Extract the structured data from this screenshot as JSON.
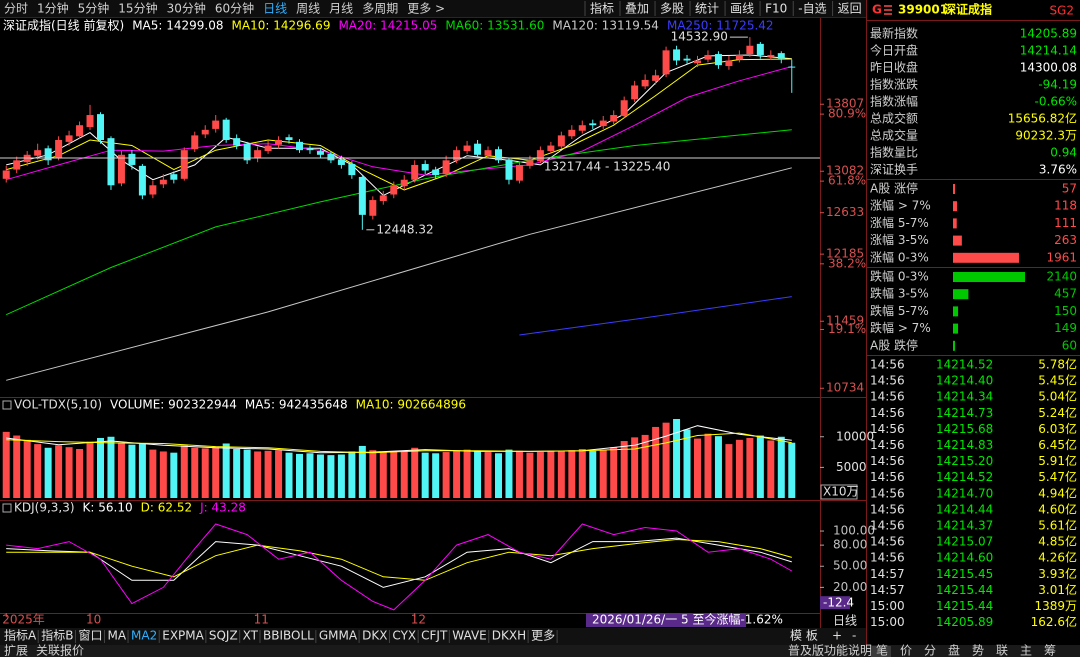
{
  "toolbar": {
    "periods": [
      "分时",
      "1分钟",
      "5分钟",
      "15分钟",
      "30分钟",
      "60分钟",
      "日线",
      "周线",
      "月线",
      "多周期",
      "更多 >"
    ],
    "active_period": 6,
    "tools": [
      "指标",
      "叠加",
      "多股",
      "统计",
      "画线",
      "F10",
      "-自选",
      "返回"
    ]
  },
  "chart_data": [
    {
      "type": "candlestick",
      "title": "深证成指(日线 前复权)",
      "open": [
        13000,
        13100,
        13180,
        13250,
        13330,
        13230,
        13400,
        13460,
        13560,
        13700,
        13440,
        12950,
        13270,
        13140,
        12830,
        12940,
        13050,
        13000,
        13320,
        13480,
        13540,
        13640,
        13440,
        13380,
        13220,
        13300,
        13370,
        13450,
        13400,
        13330,
        13300,
        13270,
        13210,
        13160,
        13020,
        12600,
        12760,
        12830,
        12920,
        12990,
        13160,
        13100,
        13050,
        13200,
        13300,
        13380,
        13250,
        13320,
        13210,
        12980,
        13140,
        13190,
        13300,
        13350,
        13460,
        13520,
        13600,
        13570,
        13620,
        13680,
        13860,
        14000,
        14060,
        14130,
        14400,
        14300,
        14250,
        14290,
        14350,
        14220,
        14290,
        14350,
        14460,
        14320,
        14360,
        14214.14
      ],
      "high": [
        13140,
        13240,
        13300,
        13380,
        13360,
        13460,
        13520,
        13620,
        13800,
        13720,
        13460,
        13300,
        13310,
        13160,
        12980,
        13050,
        13080,
        13340,
        13510,
        13580,
        13690,
        13660,
        13480,
        13400,
        13350,
        13410,
        13460,
        13480,
        13430,
        13360,
        13330,
        13300,
        13250,
        13190,
        13040,
        12810,
        12870,
        12970,
        13040,
        13200,
        13200,
        13130,
        13250,
        13350,
        13410,
        13420,
        13350,
        13350,
        13230,
        13190,
        13250,
        13350,
        13400,
        13510,
        13580,
        13630,
        13640,
        13680,
        13740,
        13890,
        14060,
        14130,
        14180,
        14430,
        14440,
        14340,
        14330,
        14390,
        14380,
        14330,
        14390,
        14532.9,
        14480,
        14390,
        14380,
        14290
      ],
      "low": [
        12960,
        13060,
        13140,
        13210,
        13150,
        13200,
        13360,
        13430,
        13530,
        13380,
        12880,
        12920,
        13100,
        12780,
        12790,
        12900,
        12950,
        12980,
        13290,
        13440,
        13500,
        13390,
        13320,
        13160,
        13180,
        13270,
        13330,
        13380,
        13280,
        13270,
        13220,
        13170,
        13110,
        13000,
        12448.32,
        12560,
        12720,
        12790,
        12880,
        12960,
        13050,
        13000,
        13020,
        13170,
        13270,
        13220,
        13220,
        13170,
        12940,
        12950,
        13110,
        13170,
        13270,
        13330,
        13430,
        13490,
        13540,
        13540,
        13590,
        13660,
        13830,
        13970,
        14020,
        14100,
        14230,
        14240,
        14210,
        14260,
        14190,
        14180,
        14260,
        14320,
        14300,
        14290,
        14250,
        13930
      ],
      "close": [
        13090,
        13200,
        13260,
        13310,
        13200,
        13420,
        13470,
        13580,
        13690,
        13420,
        12930,
        13260,
        13150,
        12820,
        12930,
        12990,
        12990,
        13310,
        13470,
        13530,
        13630,
        13420,
        13360,
        13200,
        13310,
        13360,
        13420,
        13420,
        13310,
        13310,
        13260,
        13200,
        13150,
        13040,
        12610,
        12770,
        12820,
        12930,
        12990,
        13150,
        13090,
        13040,
        13200,
        13310,
        13360,
        13260,
        13310,
        13200,
        12990,
        13150,
        13200,
        13310,
        13360,
        13470,
        13530,
        13580,
        13580,
        13630,
        13690,
        13850,
        14010,
        14070,
        14120,
        14390,
        14280,
        14280,
        14280,
        14340,
        14230,
        14280,
        14340,
        14440,
        14340,
        14340,
        14300,
        14205.89
      ],
      "up_color": "#ff4a4a",
      "down_color": "#52f5f5",
      "ylim": [
        10650,
        14740
      ],
      "yticks": [
        10734,
        11459,
        12185,
        12633,
        13082,
        13807
      ],
      "ytick_color": "#d85050",
      "fib_levels": [
        {
          "value": 11370,
          "label": "19.1%"
        },
        {
          "value": 12080,
          "label": "38.2%"
        },
        {
          "value": 12975,
          "label": "61.8%"
        },
        {
          "value": 13700,
          "label": "80.9%"
        }
      ],
      "xticks": [
        {
          "value": 0,
          "label": "2025年"
        },
        {
          "value": 8,
          "label": "10"
        },
        {
          "value": 24,
          "label": "11"
        },
        {
          "value": 39,
          "label": "12"
        }
      ],
      "series": [
        {
          "name": "MA5: 14299.08",
          "color": "#ffffff",
          "x": [
            0,
            4,
            8,
            11,
            14,
            18,
            21,
            25,
            30,
            33,
            36,
            40,
            44,
            48,
            51,
            55,
            59,
            63,
            67,
            71,
            75
          ],
          "values": [
            13150,
            13260,
            13500,
            13200,
            12990,
            13150,
            13450,
            13330,
            13330,
            13150,
            12820,
            13040,
            13250,
            13200,
            13150,
            13470,
            13700,
            14150,
            14330,
            14340,
            14299.08
          ]
        },
        {
          "name": "MA10: 14296.69",
          "color": "#ffff00",
          "x": [
            0,
            5,
            8,
            12,
            16,
            20,
            25,
            30,
            34,
            38,
            42,
            46,
            50,
            54,
            58,
            62,
            66,
            70,
            75
          ],
          "values": [
            13100,
            13250,
            13420,
            13360,
            13100,
            13310,
            13420,
            13360,
            13100,
            12880,
            13040,
            13250,
            13200,
            13360,
            13580,
            13900,
            14230,
            14290,
            14296.69
          ]
        },
        {
          "name": "MA20: 14215.05",
          "color": "#ff00ff",
          "x": [
            0,
            5,
            10,
            15,
            20,
            25,
            30,
            35,
            40,
            45,
            50,
            55,
            60,
            65,
            70,
            75
          ],
          "values": [
            12990,
            13150,
            13310,
            13300,
            13360,
            13380,
            13310,
            13130,
            13040,
            13100,
            13150,
            13300,
            13580,
            13880,
            14060,
            14215.05
          ]
        },
        {
          "name": "MA60: 13531.60",
          "color": "#00d800",
          "x": [
            0,
            10,
            20,
            30,
            40,
            50,
            60,
            75
          ],
          "values": [
            11530,
            12040,
            12480,
            12750,
            13000,
            13200,
            13360,
            13531.6
          ]
        },
        {
          "name": "MA120: 13119.54",
          "color": "#c8c8c8",
          "x": [
            0,
            25,
            50,
            75
          ],
          "values": [
            10820,
            11560,
            12400,
            13119.54
          ]
        },
        {
          "name": "MA250: 11725.42",
          "color": "#3c3cff",
          "x": [
            49,
            60,
            75
          ],
          "values": [
            11310,
            11480,
            11725.42
          ]
        }
      ],
      "annotations": [
        {
          "value": 14532.9,
          "label": "14532.90",
          "x": 71,
          "side": "left"
        },
        {
          "value": 12448.32,
          "label": "12448.32",
          "x": 34,
          "side": "right"
        },
        {
          "value": 13225.4,
          "label": "13217.44 - 13225.40",
          "x": 50,
          "side": "right",
          "line": "full"
        }
      ]
    },
    {
      "type": "bar",
      "title": "VOL-TDX(5,10)",
      "value_label": "VOLUME: 902322944",
      "values": [
        10800,
        10200,
        9500,
        8800,
        8200,
        8600,
        8300,
        8000,
        9200,
        9800,
        10000,
        9000,
        8700,
        8900,
        7900,
        7600,
        7400,
        8600,
        8200,
        8100,
        8300,
        8900,
        8000,
        7900,
        7600,
        7700,
        7800,
        7400,
        7200,
        7300,
        7100,
        7000,
        7100,
        7600,
        8500,
        7800,
        7600,
        7500,
        7700,
        8200,
        7400,
        7300,
        7500,
        7800,
        7900,
        7600,
        7500,
        7300,
        7900,
        7700,
        7400,
        7500,
        7700,
        7600,
        7800,
        8000,
        7700,
        7900,
        8300,
        9300,
        9900,
        10300,
        11600,
        12300,
        12900,
        11200,
        9700,
        10500,
        10100,
        8800,
        9500,
        9800,
        10200,
        9400,
        10000,
        9023
      ],
      "ylim": [
        0,
        16000
      ],
      "yticks": [
        5000,
        10000
      ],
      "unit": "X10万",
      "series": [
        {
          "name": "MA5: 942435648",
          "color": "#ffffff",
          "x": [
            0,
            5,
            10,
            15,
            20,
            25,
            30,
            35,
            40,
            45,
            50,
            55,
            60,
            63,
            66,
            70,
            75
          ],
          "values": [
            9800,
            8700,
            9300,
            8600,
            8200,
            8000,
            7400,
            7500,
            7900,
            7600,
            7600,
            7700,
            8600,
            10100,
            11800,
            10400,
            9424
          ]
        },
        {
          "name": "MA10: 902664896",
          "color": "#ffff00",
          "x": [
            0,
            5,
            10,
            15,
            20,
            25,
            30,
            35,
            40,
            45,
            50,
            55,
            60,
            63,
            66,
            70,
            75
          ],
          "values": [
            9500,
            9200,
            9000,
            8900,
            8400,
            8200,
            7600,
            7400,
            7700,
            7700,
            7600,
            7700,
            8000,
            9000,
            10200,
            10600,
            9027
          ]
        }
      ]
    },
    {
      "type": "line",
      "title": "KDJ(9,3,3)",
      "ylim": [
        -15,
        137
      ],
      "yticks": [
        {
          "value": 20,
          "label": "20.00"
        },
        {
          "value": 50,
          "label": "50.00"
        },
        {
          "value": 80,
          "label": "80.00"
        },
        {
          "value": 100,
          "label": "100.00"
        }
      ],
      "cursor_value": -12.4,
      "series": [
        {
          "name": "K: 56.10",
          "color": "#ffffff",
          "x": [
            0,
            4,
            8,
            12,
            16,
            20,
            24,
            28,
            32,
            36,
            40,
            44,
            48,
            52,
            56,
            60,
            64,
            68,
            72,
            75
          ],
          "values": [
            75,
            72,
            70,
            30,
            30,
            85,
            80,
            65,
            50,
            20,
            35,
            70,
            75,
            55,
            85,
            85,
            90,
            80,
            70,
            56.1
          ]
        },
        {
          "name": "D: 62.52",
          "color": "#ffff00",
          "x": [
            0,
            4,
            8,
            12,
            16,
            20,
            24,
            28,
            32,
            36,
            40,
            44,
            48,
            52,
            56,
            60,
            64,
            68,
            72,
            75
          ],
          "values": [
            70,
            70,
            70,
            50,
            35,
            65,
            80,
            72,
            60,
            35,
            30,
            55,
            70,
            65,
            75,
            82,
            88,
            85,
            75,
            62.52
          ]
        },
        {
          "name": "J: 43.28",
          "color": "#ff00ff",
          "x": [
            0,
            3,
            6,
            9,
            12,
            15,
            18,
            20,
            23,
            26,
            29,
            32,
            35,
            37,
            40,
            43,
            46,
            49,
            52,
            55,
            58,
            61,
            64,
            67,
            70,
            73,
            75
          ],
          "values": [
            80,
            75,
            85,
            60,
            -3,
            20,
            75,
            110,
            95,
            60,
            70,
            30,
            0,
            -12,
            30,
            80,
            95,
            70,
            60,
            110,
            95,
            105,
            100,
            70,
            75,
            60,
            43.28
          ]
        }
      ]
    }
  ],
  "status": "2026/01/26/一 5 至今涨幅-1.62%",
  "period_label": "日线",
  "indicator_tabs": {
    "items": [
      "指标A",
      "指标B",
      "窗口",
      "MA",
      "MA2",
      "EXPMA",
      "SQJZ",
      "XT",
      "BBIBOLL",
      "GMMA",
      "DKX",
      "CYX",
      "CFJT",
      "WAVE",
      "DKXH",
      "更多"
    ],
    "active": 4
  },
  "template_buttons": [
    "模 板",
    "+",
    "-"
  ],
  "footer": {
    "left": [
      "扩展",
      "关联报价"
    ],
    "help": "普及版功能说明",
    "tabs": [
      "笔",
      "价",
      "分",
      "盘",
      "势",
      "联",
      "主",
      "筹"
    ],
    "active_tab": 0
  },
  "quote": {
    "market": "G",
    "code": "399001",
    "name": "深证成指",
    "badge": "SG2",
    "rows": [
      {
        "label": "最新指数",
        "value": "14205.89",
        "color": "#00e600"
      },
      {
        "label": "今日开盘",
        "value": "14214.14",
        "color": "#00e600"
      },
      {
        "label": "昨日收盘",
        "value": "14300.08",
        "color": "#ffffff"
      },
      {
        "label": "指数涨跌",
        "value": "-94.19",
        "color": "#00e600"
      },
      {
        "label": "指数涨幅",
        "value": "-0.66%",
        "color": "#00e600"
      },
      {
        "label": "总成交额",
        "value": "15656.82亿",
        "color": "#ffff00"
      },
      {
        "label": "总成交量",
        "value": "90232.3万",
        "color": "#ffff00"
      },
      {
        "label": "指数量比",
        "value": "0.94",
        "color": "#00e600"
      },
      {
        "label": "深证换手",
        "value": "3.76%",
        "color": "#ffffff"
      }
    ]
  },
  "breadth": {
    "rows": [
      {
        "label": "A股 涨停",
        "value": 57,
        "color": "#ff4a4a"
      },
      {
        "label": "涨幅 > 7%",
        "value": 118,
        "color": "#ff4a4a"
      },
      {
        "label": "涨幅 5-7%",
        "value": 111,
        "color": "#ff4a4a"
      },
      {
        "label": "涨幅 3-5%",
        "value": 263,
        "color": "#ff4a4a"
      },
      {
        "label": "涨幅 0-3%",
        "value": 1961,
        "color": "#ff4a4a"
      },
      {
        "label": "跌幅 0-3%",
        "value": 2140,
        "color": "#00c800"
      },
      {
        "label": "跌幅 3-5%",
        "value": 457,
        "color": "#00c800"
      },
      {
        "label": "跌幅 5-7%",
        "value": 150,
        "color": "#00c800"
      },
      {
        "label": "跌幅 > 7%",
        "value": 149,
        "color": "#00c800"
      },
      {
        "label": "A股 跌停",
        "value": 60,
        "color": "#00c800"
      }
    ]
  },
  "trades": {
    "colors": [
      "#e0e0e0",
      "#00e600",
      "#ffff00"
    ],
    "rows": [
      [
        "14:56",
        "14214.52",
        "5.78亿"
      ],
      [
        "14:56",
        "14214.40",
        "5.45亿"
      ],
      [
        "14:56",
        "14214.34",
        "5.04亿"
      ],
      [
        "14:56",
        "14214.73",
        "5.24亿"
      ],
      [
        "14:56",
        "14215.68",
        "6.03亿"
      ],
      [
        "14:56",
        "14214.83",
        "6.45亿"
      ],
      [
        "14:56",
        "14215.20",
        "5.91亿"
      ],
      [
        "14:56",
        "14214.52",
        "5.47亿"
      ],
      [
        "14:56",
        "14214.70",
        "4.94亿"
      ],
      [
        "14:56",
        "14214.44",
        "4.60亿"
      ],
      [
        "14:56",
        "14214.37",
        "5.61亿"
      ],
      [
        "14:56",
        "14215.07",
        "4.85亿"
      ],
      [
        "14:56",
        "14214.60",
        "4.26亿"
      ],
      [
        "14:57",
        "14215.45",
        "3.93亿"
      ],
      [
        "14:57",
        "14215.44",
        "3.01亿"
      ],
      [
        "15:00",
        "14215.44",
        "1389万"
      ],
      [
        "15:00",
        "14205.89",
        "162.6亿"
      ]
    ]
  }
}
